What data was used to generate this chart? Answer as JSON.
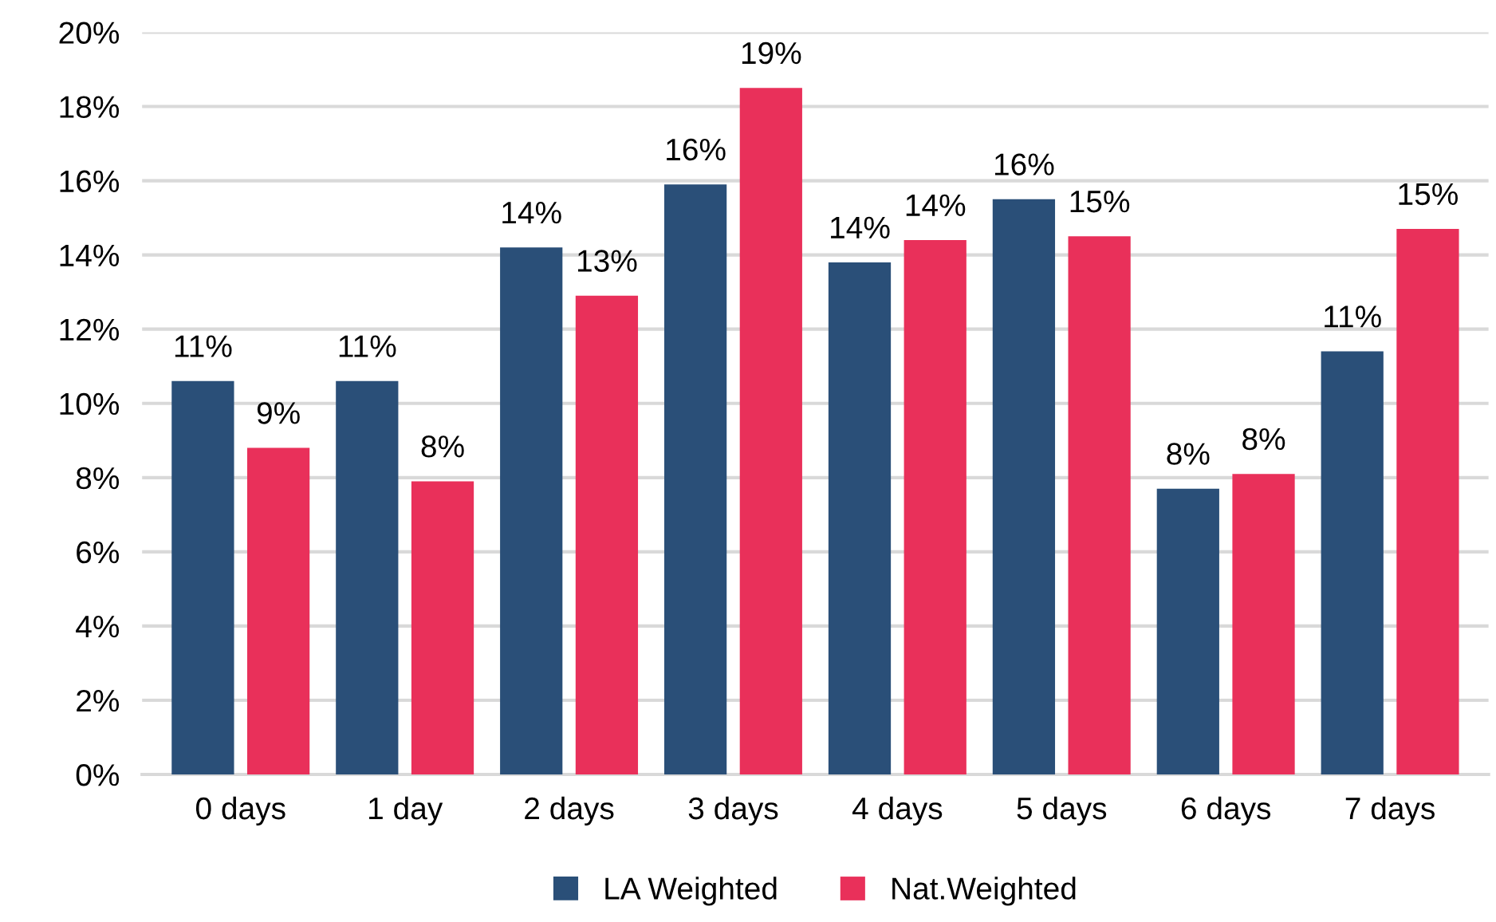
{
  "chart_data": {
    "type": "bar",
    "categories": [
      "0 days",
      "1 day",
      "2 days",
      "3 days",
      "4 days",
      "5 days",
      "6 days",
      "7 days"
    ],
    "series": [
      {
        "name": "LA Weighted",
        "color": "#2a4f78",
        "values": [
          10.6,
          10.6,
          14.2,
          15.9,
          13.8,
          15.5,
          7.7,
          11.4
        ],
        "value_labels": [
          "11%",
          "11%",
          "14%",
          "16%",
          "14%",
          "16%",
          "8%",
          "11%"
        ]
      },
      {
        "name": "Nat.Weighted",
        "color": "#e9305a",
        "values": [
          8.8,
          7.9,
          12.9,
          18.5,
          14.4,
          14.5,
          8.1,
          14.7
        ],
        "value_labels": [
          "9%",
          "8%",
          "13%",
          "19%",
          "14%",
          "15%",
          "8%",
          "15%"
        ]
      }
    ],
    "ylim": [
      0,
      20
    ],
    "yticks": [
      {
        "value": 0,
        "label": "0%"
      },
      {
        "value": 2,
        "label": "2%"
      },
      {
        "value": 4,
        "label": "4%"
      },
      {
        "value": 6,
        "label": "6%"
      },
      {
        "value": 8,
        "label": "8%"
      },
      {
        "value": 10,
        "label": "10%"
      },
      {
        "value": 12,
        "label": "12%"
      },
      {
        "value": 14,
        "label": "14%"
      },
      {
        "value": 16,
        "label": "16%"
      },
      {
        "value": 18,
        "label": "18%"
      },
      {
        "value": 20,
        "label": "20%"
      }
    ],
    "grid": "y",
    "legend": "bottom"
  }
}
